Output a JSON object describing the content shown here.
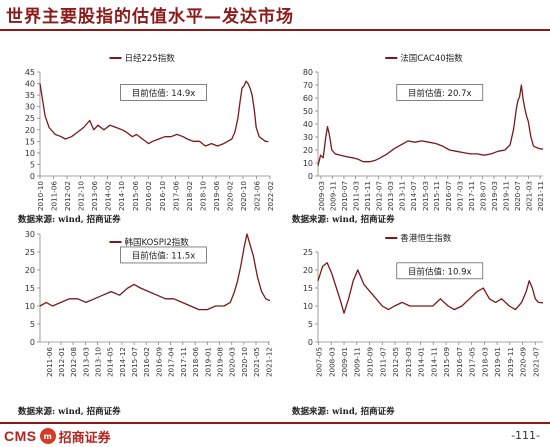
{
  "header": {
    "title": "世界主要股指的估值水平—发达市场"
  },
  "footer": {
    "logo_text": "CMS",
    "logo_badge": "m",
    "logo_cn": "招商证券",
    "page_number": "-111-"
  },
  "colors": {
    "line": "#7a1a1a",
    "accent": "#8b1a1a",
    "axis": "#888888",
    "text": "#222222"
  },
  "chart_data": [
    {
      "type": "line",
      "legend": "日经225指数",
      "annotation": "目前估值:  14.9x",
      "source": "数据来源: wind, 招商证券",
      "ylim": [
        0,
        45
      ],
      "yticks": [
        0,
        5,
        10,
        15,
        20,
        25,
        30,
        35,
        40,
        45
      ],
      "x_start": 2010.75,
      "x_end": 2022.08,
      "xticks": [
        "2010-10",
        "2011-06",
        "2012-02",
        "2012-10",
        "2013-06",
        "2014-02",
        "2014-10",
        "2015-06",
        "2016-02",
        "2016-10",
        "2017-06",
        "2018-02",
        "2018-10",
        "2019-06",
        "2020-02",
        "2020-10",
        "2021-06",
        "2022-02"
      ],
      "xtick_pos": [
        2010.75,
        2011.42,
        2012.08,
        2012.75,
        2013.42,
        2014.08,
        2014.75,
        2015.42,
        2016.08,
        2016.75,
        2017.42,
        2018.08,
        2018.75,
        2019.42,
        2020.08,
        2020.75,
        2021.42,
        2022.08
      ],
      "series": [
        {
          "x": [
            2010.75,
            2011.0,
            2011.2,
            2011.5,
            2011.8,
            2012.0,
            2012.3,
            2012.6,
            2012.9,
            2013.2,
            2013.4,
            2013.6,
            2013.9,
            2014.2,
            2014.5,
            2014.8,
            2015.0,
            2015.3,
            2015.5,
            2015.8,
            2016.1,
            2016.3,
            2016.6,
            2016.9,
            2017.2,
            2017.5,
            2017.8,
            2018.0,
            2018.3,
            2018.6,
            2018.9,
            2019.2,
            2019.5,
            2019.8,
            2020.0,
            2020.2,
            2020.35,
            2020.5,
            2020.6,
            2020.7,
            2020.8,
            2020.9,
            2021.0,
            2021.1,
            2021.2,
            2021.3,
            2021.4,
            2021.55,
            2021.7,
            2021.85,
            2022.0
          ],
          "y": [
            40,
            26,
            21,
            18,
            17,
            16,
            17,
            19,
            21,
            24,
            20,
            22,
            20,
            22,
            21,
            20,
            19,
            17,
            18,
            16,
            14,
            15,
            16,
            17,
            17,
            18,
            17,
            16,
            15,
            15,
            13,
            14,
            13,
            14,
            15,
            16,
            19,
            25,
            32,
            38,
            39,
            41,
            40,
            38,
            35,
            29,
            21,
            17,
            16,
            15,
            14.9
          ]
        }
      ]
    },
    {
      "type": "line",
      "legend": "法国CAC40指数",
      "annotation": "目前估值:  20.7x",
      "source": "数据来源: wind, 招商证券",
      "ylim": [
        0,
        80
      ],
      "yticks": [
        0,
        10,
        20,
        30,
        40,
        50,
        60,
        70,
        80
      ],
      "x_start": 2009.0,
      "x_end": 2022.0,
      "xticks": [
        "2009-03",
        "2009-11",
        "2010-07",
        "2011-03",
        "2011-11",
        "2012-07",
        "2013-03",
        "2013-11",
        "2014-07",
        "2015-03",
        "2015-11",
        "2016-07",
        "2017-03",
        "2017-11",
        "2018-07",
        "2019-03",
        "2019-11",
        "2020-07",
        "2021-03",
        "2021-11"
      ],
      "xtick_pos": [
        2009.17,
        2009.83,
        2010.5,
        2011.17,
        2011.83,
        2012.5,
        2013.17,
        2013.83,
        2014.5,
        2015.17,
        2015.83,
        2016.5,
        2017.17,
        2017.83,
        2018.5,
        2019.17,
        2019.83,
        2020.5,
        2021.17,
        2021.83
      ],
      "series": [
        {
          "x": [
            2009.0,
            2009.15,
            2009.3,
            2009.45,
            2009.55,
            2009.65,
            2009.8,
            2010.0,
            2010.3,
            2010.6,
            2011.0,
            2011.3,
            2011.6,
            2012.0,
            2012.3,
            2012.6,
            2013.0,
            2013.4,
            2013.8,
            2014.2,
            2014.6,
            2015.0,
            2015.4,
            2015.8,
            2016.2,
            2016.6,
            2017.0,
            2017.4,
            2017.8,
            2018.2,
            2018.6,
            2019.0,
            2019.4,
            2019.8,
            2020.1,
            2020.3,
            2020.45,
            2020.55,
            2020.65,
            2020.75,
            2020.85,
            2020.95,
            2021.05,
            2021.15,
            2021.3,
            2021.45,
            2021.6,
            2021.8,
            2022.0
          ],
          "y": [
            8,
            16,
            14,
            30,
            38,
            32,
            20,
            17,
            16,
            15,
            14,
            13,
            11,
            11,
            12,
            14,
            17,
            21,
            24,
            27,
            26,
            27,
            26,
            25,
            23,
            20,
            19,
            18,
            17,
            17,
            16,
            17,
            19,
            20,
            24,
            36,
            51,
            58,
            61,
            70,
            59,
            52,
            46,
            42,
            30,
            23,
            22,
            21,
            20.7
          ]
        }
      ]
    },
    {
      "type": "line",
      "legend": "韩国KOSPI2指数",
      "annotation": "目前估值:  11.5x",
      "source": "数据来源: wind, 招商证券",
      "ylim": [
        0,
        30
      ],
      "yticks": [
        0,
        5,
        10,
        15,
        20,
        25,
        30
      ],
      "x_start": 2011.0,
      "x_end": 2022.0,
      "xticks": [
        "2011-06",
        "2012-01",
        "2012-08",
        "2013-03",
        "2013-10",
        "2014-05",
        "2014-12",
        "2015-07",
        "2016-02",
        "2016-09",
        "2017-04",
        "2017-11",
        "2018-06",
        "2019-01",
        "2019-08",
        "2020-03",
        "2020-10",
        "2021-05",
        "2021-12"
      ],
      "xtick_pos": [
        2011.42,
        2012.0,
        2012.58,
        2013.17,
        2013.75,
        2014.33,
        2014.92,
        2015.5,
        2016.08,
        2016.67,
        2017.25,
        2017.83,
        2018.42,
        2019.0,
        2019.58,
        2020.17,
        2020.75,
        2021.33,
        2021.92
      ],
      "series": [
        {
          "x": [
            2011.0,
            2011.3,
            2011.6,
            2012.0,
            2012.4,
            2012.8,
            2013.2,
            2013.6,
            2014.0,
            2014.4,
            2014.8,
            2015.2,
            2015.5,
            2015.8,
            2016.2,
            2016.6,
            2017.0,
            2017.4,
            2017.8,
            2018.2,
            2018.6,
            2019.0,
            2019.4,
            2019.8,
            2020.1,
            2020.3,
            2020.45,
            2020.6,
            2020.75,
            2020.9,
            2021.05,
            2021.2,
            2021.4,
            2021.6,
            2021.8,
            2022.0
          ],
          "y": [
            10,
            11,
            10,
            11,
            12,
            12,
            11,
            12,
            13,
            14,
            13,
            15,
            16,
            15,
            14,
            13,
            12,
            12,
            11,
            10,
            9,
            9,
            10,
            10,
            11,
            14,
            17,
            21,
            26,
            30,
            27,
            24,
            18,
            14,
            12,
            11.5
          ]
        }
      ]
    },
    {
      "type": "line",
      "legend": "香港恒生指数",
      "annotation": "目前估值:  10.9x",
      "source": "数据来源: wind, 招商证券",
      "ylim": [
        0,
        25
      ],
      "yticks": [
        0,
        5,
        10,
        15,
        20,
        25
      ],
      "x_start": 2007.3,
      "x_end": 2022.0,
      "xticks": [
        "2007-05",
        "2008-03",
        "2009-01",
        "2009-11",
        "2010-09",
        "2011-07",
        "2012-05",
        "2013-03",
        "2014-01",
        "2014-11",
        "2015-09",
        "2016-07",
        "2017-05",
        "2018-03",
        "2019-01",
        "2019-11",
        "2020-09",
        "2021-07"
      ],
      "xtick_pos": [
        2007.33,
        2008.17,
        2009.0,
        2009.83,
        2010.67,
        2011.5,
        2012.33,
        2013.17,
        2014.0,
        2014.83,
        2015.67,
        2016.5,
        2017.33,
        2018.17,
        2019.0,
        2019.83,
        2020.67,
        2021.5
      ],
      "series": [
        {
          "x": [
            2007.3,
            2007.6,
            2007.9,
            2008.2,
            2008.5,
            2008.8,
            2009.0,
            2009.3,
            2009.6,
            2009.9,
            2010.3,
            2010.7,
            2011.1,
            2011.5,
            2011.9,
            2012.3,
            2012.8,
            2013.3,
            2013.8,
            2014.3,
            2014.8,
            2015.3,
            2015.8,
            2016.2,
            2016.7,
            2017.2,
            2017.7,
            2018.1,
            2018.5,
            2018.9,
            2019.3,
            2019.8,
            2020.2,
            2020.6,
            2020.9,
            2021.1,
            2021.3,
            2021.5,
            2021.7,
            2022.0
          ],
          "y": [
            17,
            21,
            22,
            19,
            15,
            11,
            8,
            12,
            17,
            20,
            16,
            14,
            12,
            10,
            9,
            10,
            11,
            10,
            10,
            10,
            10,
            12,
            10,
            9,
            10,
            12,
            14,
            15,
            12,
            11,
            12,
            10,
            9,
            11,
            14,
            17,
            15,
            12,
            11,
            10.9
          ]
        }
      ]
    }
  ]
}
